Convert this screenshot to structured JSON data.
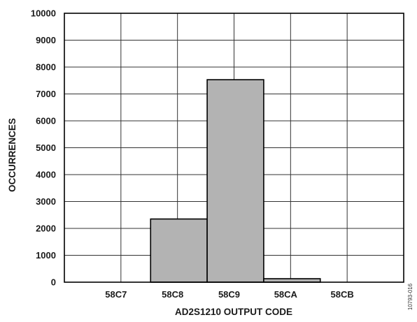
{
  "chart_data": {
    "type": "bar",
    "title": "",
    "xlabel": "AD2S1210 OUTPUT CODE",
    "ylabel": "OCCURRENCES",
    "categories": [
      "58C7",
      "58C8",
      "58C9",
      "58CA",
      "58CB"
    ],
    "values": [
      0,
      2350,
      7530,
      130,
      0
    ],
    "ylim": [
      0,
      10000
    ],
    "yticks": [
      0,
      1000,
      2000,
      3000,
      4000,
      5000,
      6000,
      7000,
      8000,
      9000,
      10000
    ],
    "grid": true,
    "bar_color": "#b3b3b3",
    "edge_color": "#000000",
    "figure_id": "10793-016"
  }
}
